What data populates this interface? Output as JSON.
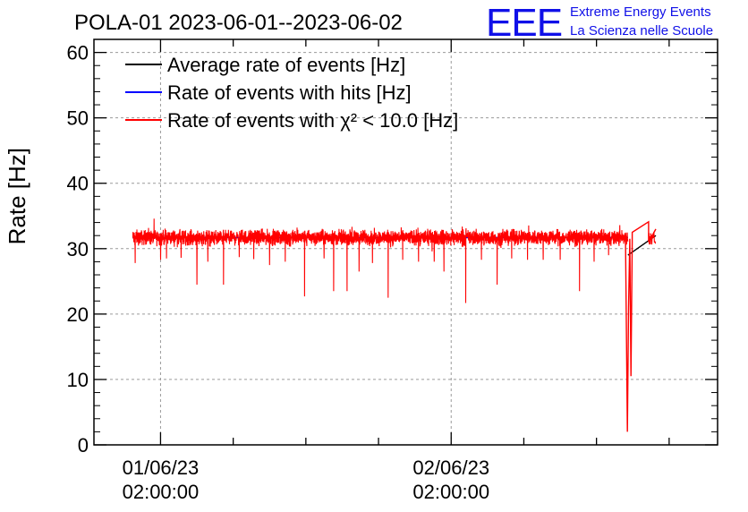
{
  "header": {
    "title": "POLA-01 2023-06-01--2023-06-02",
    "logo_text": "EEE",
    "brand_line1": "Extreme Energy Events",
    "brand_line2": "La Scienza nelle Scuole"
  },
  "colors": {
    "average": "#000000",
    "hits": "#0000ff",
    "chi2": "#ff0000",
    "logo": "#1010e8",
    "grid": "#9a9a9a"
  },
  "chart_data": {
    "type": "line",
    "title": "POLA-01 2023-06-01--2023-06-02",
    "ylabel": "Rate [Hz]",
    "ylim": [
      0,
      62
    ],
    "yticks": [
      0,
      10,
      20,
      30,
      40,
      50,
      60
    ],
    "xlim_hours": [
      -3.5,
      48.0
    ],
    "x_time_axis_note": "x in hours since 01/06/23 00:00:00",
    "xticks": [
      {
        "x": 2,
        "date": "01/06/23",
        "time": "02:00:00"
      },
      {
        "x": 26,
        "date": "02/06/23",
        "time": "02:00:00"
      }
    ],
    "grid": true,
    "legend_position": "top-left",
    "series": [
      {
        "name": "Average rate of events [Hz]",
        "color": "#000000",
        "segments": [
          {
            "x": [
              -0.3,
              40.6
            ],
            "y": [
              31.7,
              31.7
            ]
          },
          {
            "x": [
              40.6,
              42.9
            ],
            "y": [
              29.0,
              32.0
            ]
          }
        ]
      },
      {
        "name": "Rate of events with hits [Hz]",
        "color": "#0000ff",
        "segments": [
          {
            "x": [
              -0.3,
              40.6
            ],
            "y": [
              31.7,
              31.7
            ]
          }
        ]
      },
      {
        "name": "Rate of events with χ² < 10.0 [Hz]",
        "color": "#ff0000",
        "mean": 31.7,
        "noise": 1.1,
        "x_start": -0.3,
        "x_end": 40.6,
        "dips": [
          {
            "x": -0.1,
            "y": 27.8
          },
          {
            "x": 2.0,
            "y": 28.3
          },
          {
            "x": 2.5,
            "y": 28.5
          },
          {
            "x": 3.7,
            "y": 28.6
          },
          {
            "x": 5.0,
            "y": 24.5
          },
          {
            "x": 5.9,
            "y": 28.0
          },
          {
            "x": 7.2,
            "y": 24.5
          },
          {
            "x": 8.5,
            "y": 28.7
          },
          {
            "x": 9.7,
            "y": 28.4
          },
          {
            "x": 11.0,
            "y": 27.5
          },
          {
            "x": 12.3,
            "y": 28.0
          },
          {
            "x": 13.9,
            "y": 22.7
          },
          {
            "x": 15.5,
            "y": 28.5
          },
          {
            "x": 16.3,
            "y": 23.5
          },
          {
            "x": 17.4,
            "y": 23.5
          },
          {
            "x": 18.4,
            "y": 26.5
          },
          {
            "x": 19.5,
            "y": 27.8
          },
          {
            "x": 20.8,
            "y": 22.5
          },
          {
            "x": 22.0,
            "y": 28.3
          },
          {
            "x": 23.3,
            "y": 28.0
          },
          {
            "x": 24.6,
            "y": 28.0
          },
          {
            "x": 25.4,
            "y": 26.5
          },
          {
            "x": 27.2,
            "y": 21.7
          },
          {
            "x": 28.5,
            "y": 28.3
          },
          {
            "x": 29.8,
            "y": 24.5
          },
          {
            "x": 31.0,
            "y": 28.5
          },
          {
            "x": 32.3,
            "y": 28.3
          },
          {
            "x": 33.6,
            "y": 28.3
          },
          {
            "x": 35.0,
            "y": 28.3
          },
          {
            "x": 36.6,
            "y": 23.5
          },
          {
            "x": 37.8,
            "y": 28.0
          },
          {
            "x": 39.0,
            "y": 29.0
          }
        ],
        "drop": {
          "x": [
            40.4,
            40.55,
            40.65,
            40.75,
            40.85,
            40.95
          ],
          "y": [
            31.5,
            2.0,
            21.0,
            31.5,
            10.5,
            31.0
          ]
        },
        "gap_segments": [
          {
            "x": [
              40.95,
              40.95,
              42.3,
              42.3
            ],
            "y": [
              31.0,
              32.5,
              34.1,
              31.0
            ]
          },
          {
            "x": [
              42.3,
              42.9
            ],
            "y": [
              31.0,
              33.0
            ]
          }
        ]
      }
    ]
  }
}
